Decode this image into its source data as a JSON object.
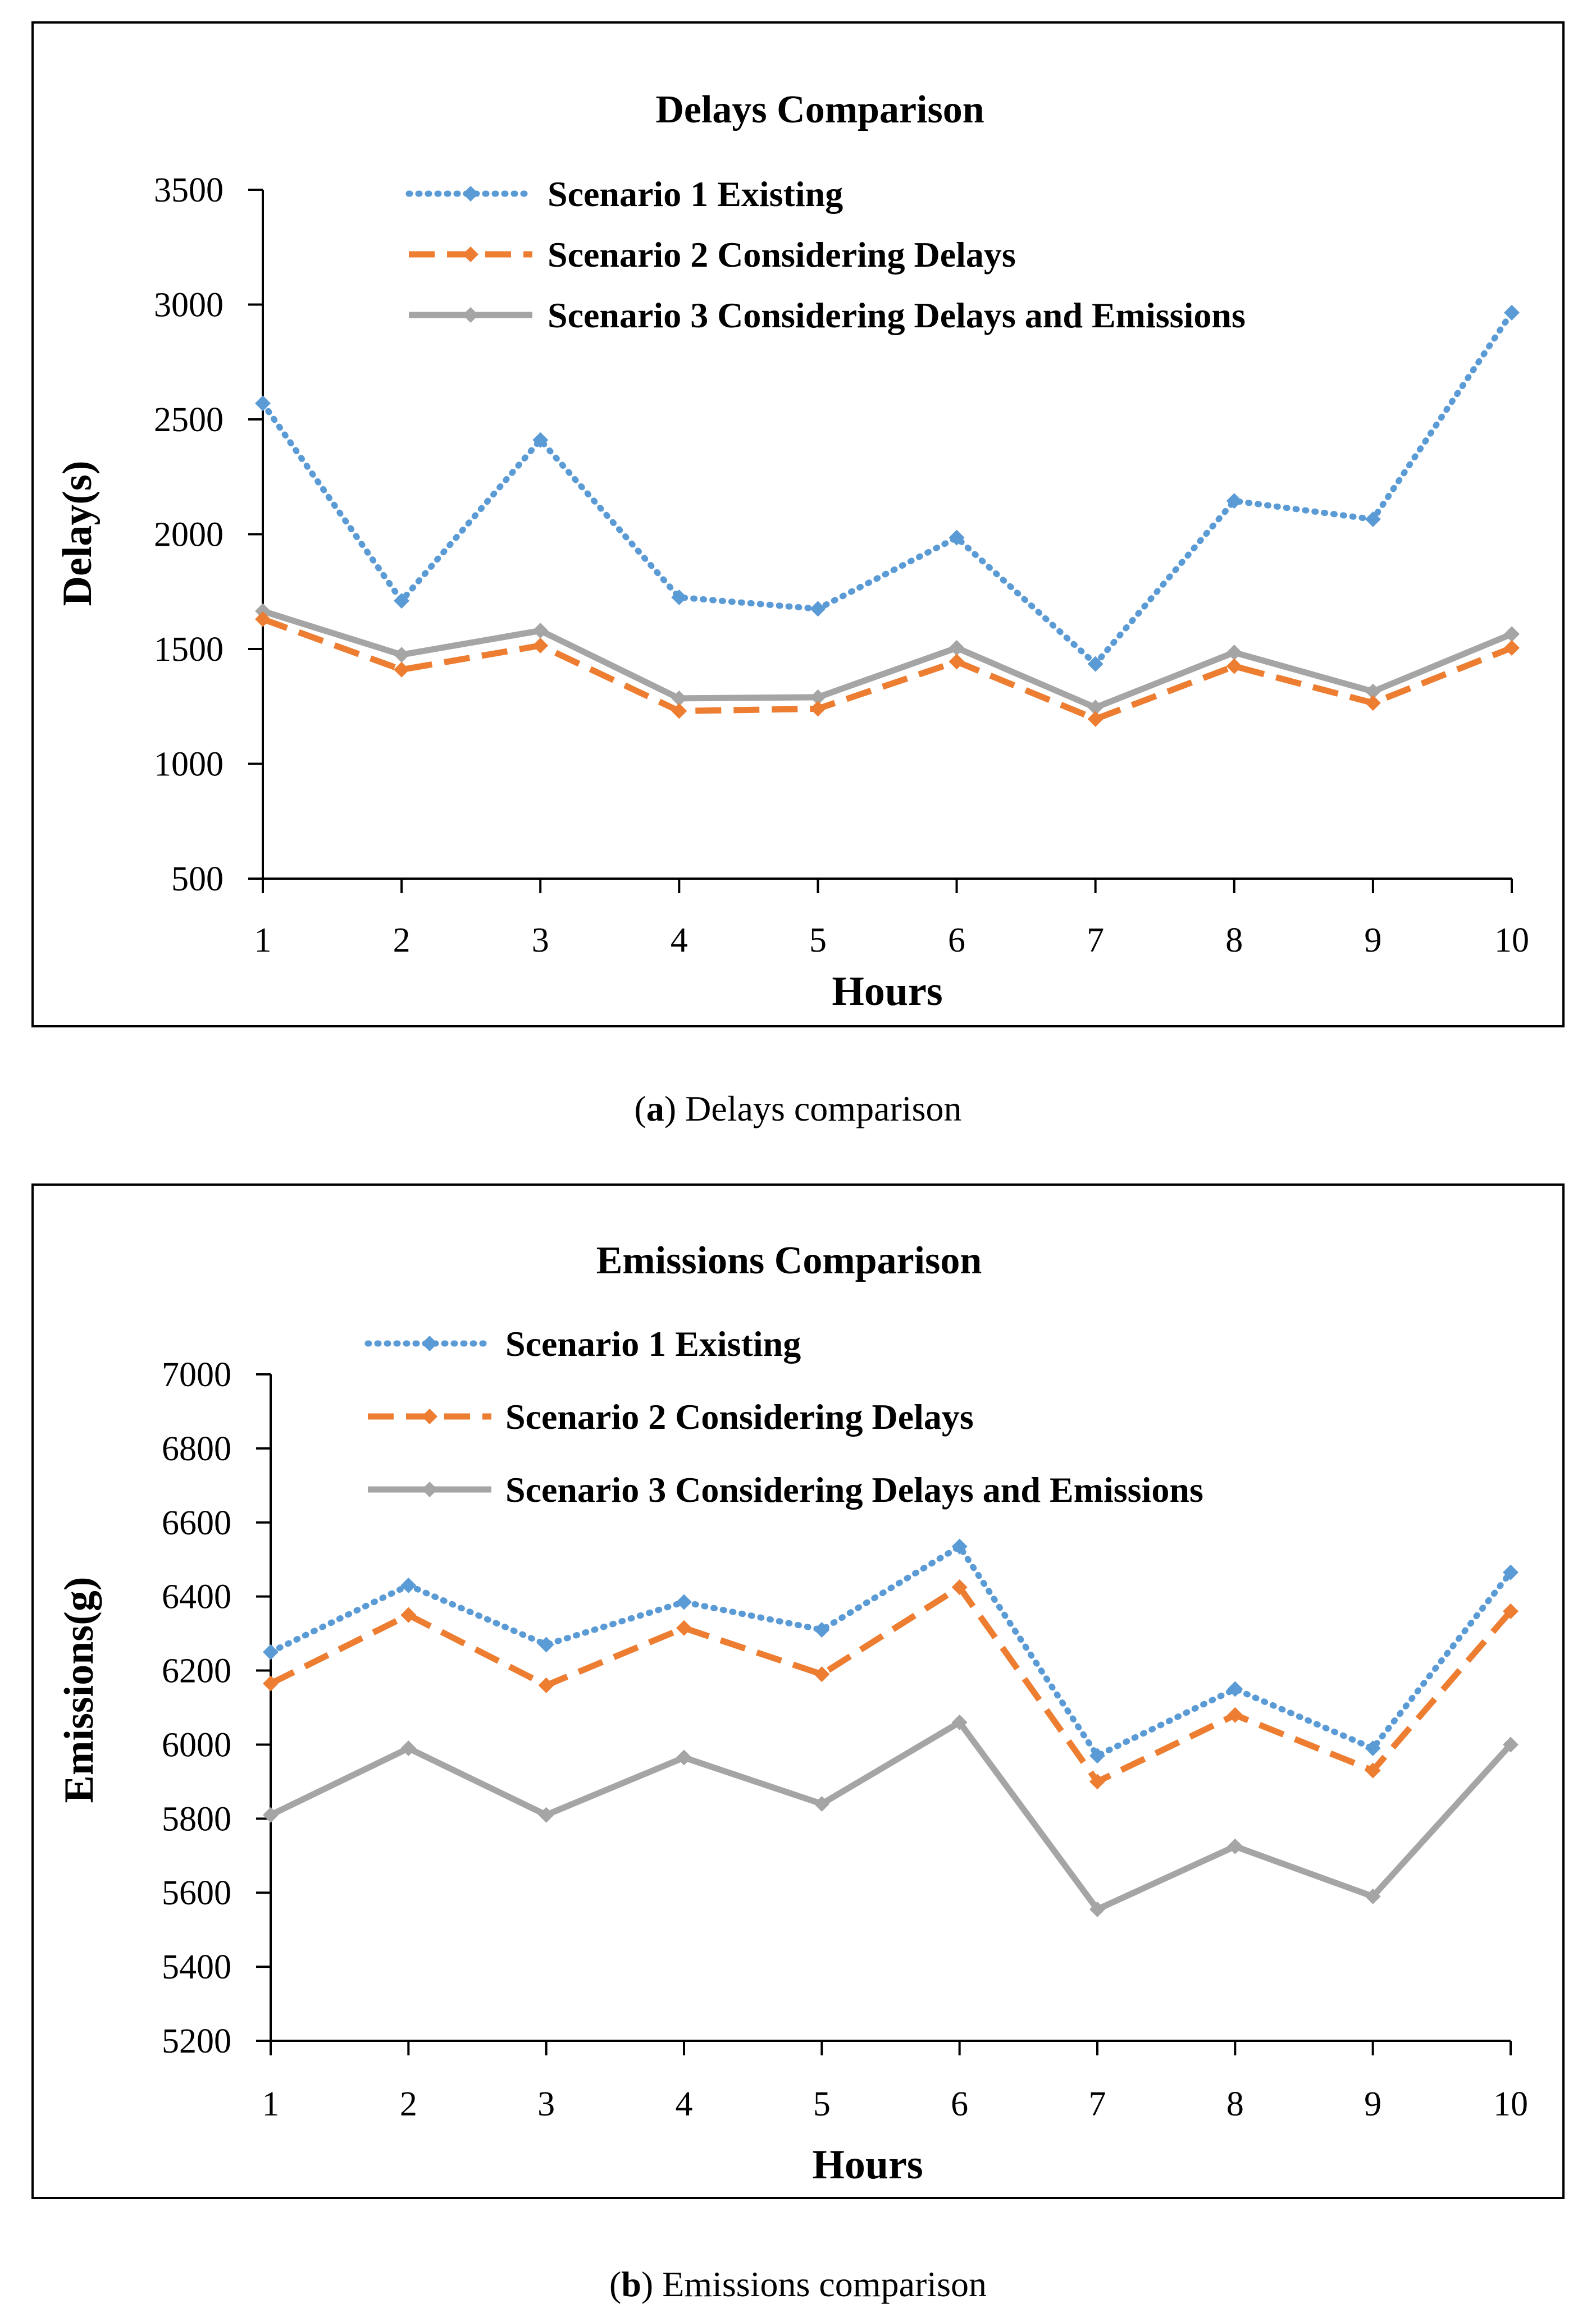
{
  "chart_data": [
    {
      "type": "line",
      "title": "Delays Comparison",
      "xlabel": "Hours",
      "ylabel": "Delay(s)",
      "categories": [
        "1",
        "2",
        "3",
        "4",
        "5",
        "6",
        "7",
        "8",
        "9",
        "10"
      ],
      "ylim": [
        500,
        3500
      ],
      "yticks": [
        "500",
        "1000",
        "1500",
        "2000",
        "2500",
        "3000",
        "3500"
      ],
      "grid": false,
      "legend_position": "top-right",
      "series": [
        {
          "name": "Scenario 1 Existing",
          "color": "#5b9bd5",
          "style": "dotted",
          "values": [
            2570,
            1710,
            2410,
            1725,
            1675,
            1985,
            1435,
            2145,
            2065,
            2965
          ]
        },
        {
          "name": "Scenario 2 Considering Delays",
          "color": "#ed7d31",
          "style": "dashed",
          "values": [
            1630,
            1410,
            1515,
            1230,
            1240,
            1445,
            1195,
            1425,
            1265,
            1505
          ]
        },
        {
          "name": "Scenario 3 Considering Delays and Emissions",
          "color": "#a5a5a5",
          "style": "solid",
          "values": [
            1665,
            1475,
            1580,
            1285,
            1290,
            1505,
            1245,
            1485,
            1315,
            1565
          ]
        }
      ],
      "caption_letter": "a",
      "caption_text": "Delays comparison"
    },
    {
      "type": "line",
      "title": "Emissions Comparison",
      "xlabel": "Hours",
      "ylabel": "Emissions(g)",
      "categories": [
        "1",
        "2",
        "3",
        "4",
        "5",
        "6",
        "7",
        "8",
        "9",
        "10"
      ],
      "ylim": [
        5200,
        7000
      ],
      "yticks": [
        "5200",
        "5400",
        "5600",
        "5800",
        "6000",
        "6200",
        "6400",
        "6600",
        "6800",
        "7000"
      ],
      "grid": false,
      "legend_position": "top",
      "series": [
        {
          "name": "Scenario 1 Existing",
          "color": "#5b9bd5",
          "style": "dotted",
          "values": [
            6250,
            6430,
            6270,
            6385,
            6310,
            6535,
            5970,
            6150,
            5990,
            6465
          ]
        },
        {
          "name": "Scenario 2 Considering Delays",
          "color": "#ed7d31",
          "style": "dashed",
          "values": [
            6165,
            6350,
            6160,
            6315,
            6190,
            6425,
            5900,
            6080,
            5930,
            6360
          ]
        },
        {
          "name": "Scenario 3 Considering Delays and Emissions",
          "color": "#a5a5a5",
          "style": "solid",
          "values": [
            5810,
            5990,
            5810,
            5965,
            5840,
            6060,
            5555,
            5725,
            5590,
            6000
          ]
        }
      ],
      "caption_letter": "b",
      "caption_text": "Emissions comparison"
    }
  ]
}
